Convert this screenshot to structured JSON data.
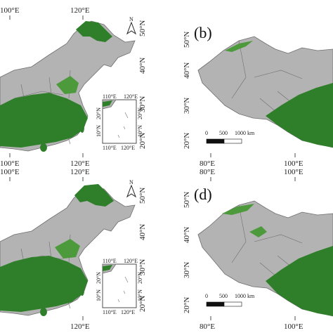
{
  "panels": [
    {
      "id": "a",
      "letter": "",
      "top_lon_labels": [
        "100°E",
        "120°E"
      ],
      "bottom_lon_labels": [
        "100°E",
        "120°E"
      ],
      "lat_labels": [
        "50°N",
        "40°N",
        "30°N",
        "20°N"
      ],
      "inset": {
        "top_labels": [
          "110°E",
          "120°E"
        ],
        "bottom_labels": [
          "110°E",
          "120°E"
        ],
        "left_labels": [
          "20°N",
          "10°N"
        ],
        "right_labels": [
          "20°N",
          "10°N"
        ]
      }
    },
    {
      "id": "b",
      "letter": "(b)",
      "top_lon_labels": [],
      "bottom_lon_labels": [
        "80°E",
        "100°E"
      ],
      "lat_labels": [
        "50°N",
        "40°N",
        "30°N",
        "20°N"
      ],
      "scale_bar": [
        "0",
        "500",
        "1000 km"
      ]
    },
    {
      "id": "c",
      "letter": "",
      "top_lon_labels": [
        "100°E",
        "120°E"
      ],
      "bottom_lon_labels": [
        "120°E"
      ],
      "lat_labels": [
        "50°N",
        "40°N",
        "30°N",
        "20°N"
      ],
      "inset": {
        "top_labels": [
          "110°E",
          "120°E"
        ],
        "bottom_labels": [
          "110°E",
          "120°E"
        ],
        "left_labels": [
          "20°N",
          "10°N"
        ],
        "right_labels": [
          "20°N",
          "10°N"
        ]
      }
    },
    {
      "id": "d",
      "letter": "(d)",
      "top_lon_labels": [
        "80°E",
        "100°E"
      ],
      "bottom_lon_labels": [
        "80°E",
        "100°E"
      ],
      "lat_labels": [
        "50°N",
        "40°N",
        "30°N",
        "20°N"
      ],
      "scale_bar": [
        "0",
        "500",
        "1000 km"
      ]
    }
  ],
  "colors": {
    "land": "#b3b3b3",
    "forest": "#2f7f2a",
    "border": "#6d6d6d"
  },
  "icons": [
    "north-arrow-icon"
  ]
}
